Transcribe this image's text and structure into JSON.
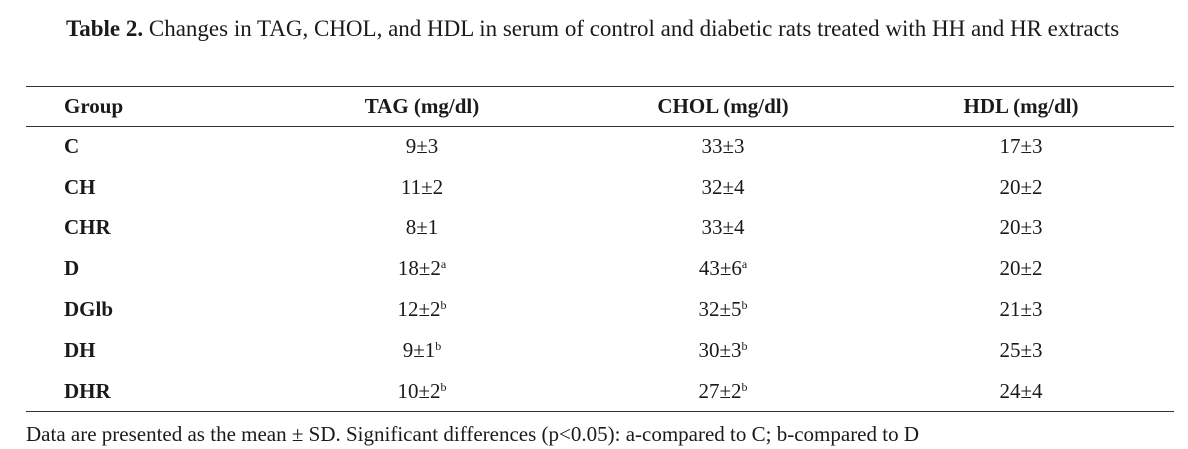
{
  "caption": {
    "label": "Table 2.",
    "text": "Changes in TAG, CHOL, and HDL in serum of control and diabetic rats treated with HH and HR extracts"
  },
  "table": {
    "headers": [
      "Group",
      "TAG (mg/dl)",
      "CHOL (mg/dl)",
      "HDL (mg/dl)"
    ],
    "rows": [
      {
        "group": "C",
        "tag": "9±3",
        "tag_sup": "",
        "chol": "33±3",
        "chol_sup": "",
        "hdl": "17±3"
      },
      {
        "group": "CH",
        "tag": "11±2",
        "tag_sup": "",
        "chol": "32±4",
        "chol_sup": "",
        "hdl": "20±2"
      },
      {
        "group": "CHR",
        "tag": "8±1",
        "tag_sup": "",
        "chol": "33±4",
        "chol_sup": "",
        "hdl": "20±3"
      },
      {
        "group": "D",
        "tag": "18±2",
        "tag_sup": "a",
        "chol": "43±6",
        "chol_sup": "a",
        "hdl": "20±2"
      },
      {
        "group": "DGlb",
        "tag": "12±2",
        "tag_sup": "b",
        "chol": "32±5",
        "chol_sup": "b",
        "hdl": "21±3"
      },
      {
        "group": "DH",
        "tag": "9±1",
        "tag_sup": "b",
        "chol": "30±3",
        "chol_sup": "b",
        "hdl": "25±3"
      },
      {
        "group": "DHR",
        "tag": "10±2",
        "tag_sup": "b",
        "chol": "27±2",
        "chol_sup": "b",
        "hdl": "24±4"
      }
    ]
  },
  "footnote": "Data are presented as the mean ± SD. Significant differences (p<0.05): a-compared to C; b-compared to D"
}
